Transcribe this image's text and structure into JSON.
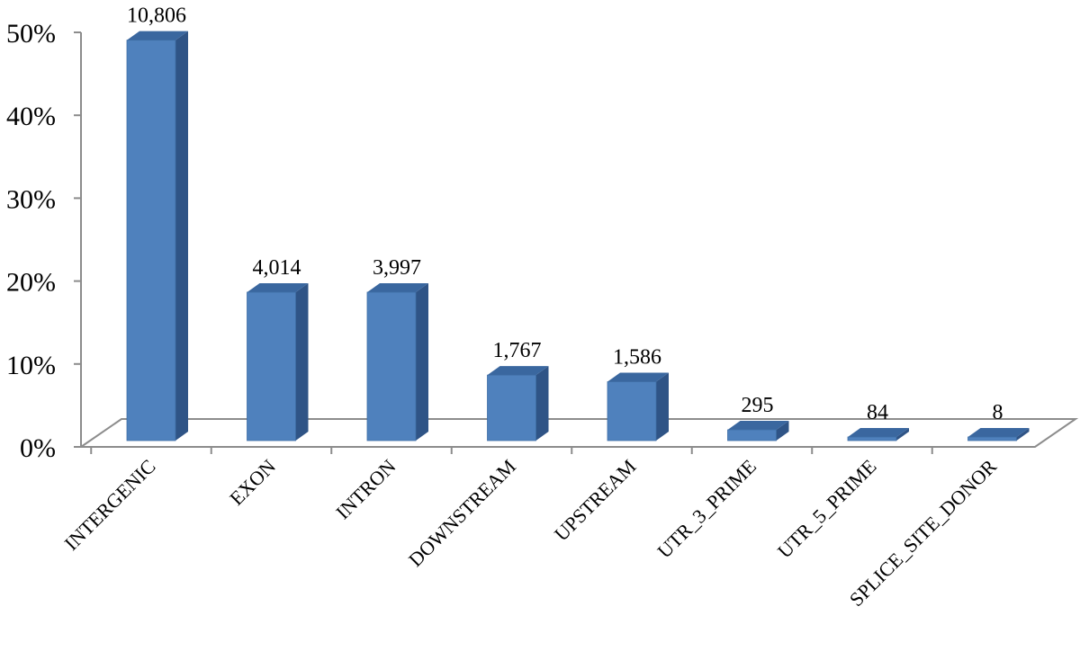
{
  "chart_data": {
    "type": "bar",
    "categories": [
      "INTERGENIC",
      "EXON",
      "INTRON",
      "DOWNSTREAM",
      "UPSTREAM",
      "UTR_3_PRIME",
      "UTR_5_PRIME",
      "SPLICE_SITE_DONOR"
    ],
    "values": [
      48.3,
      17.9,
      17.9,
      7.9,
      7.1,
      1.3,
      0.4,
      0.04
    ],
    "data_labels": [
      "10,806",
      "4,014",
      "3,997",
      "1,767",
      "1,586",
      "295",
      "84",
      "8"
    ],
    "y_tick_labels": [
      "0%",
      "10%",
      "20%",
      "30%",
      "40%",
      "50%"
    ],
    "ylim": [
      0,
      50
    ],
    "title": "",
    "xlabel": "",
    "ylabel": "",
    "grid": false,
    "legend": "none",
    "style": "3d-column",
    "colors": {
      "bar_front": "#4f81bd",
      "bar_side": "#2f5486",
      "bar_top": "#3a679f",
      "axis": "#8c8c8c"
    }
  }
}
